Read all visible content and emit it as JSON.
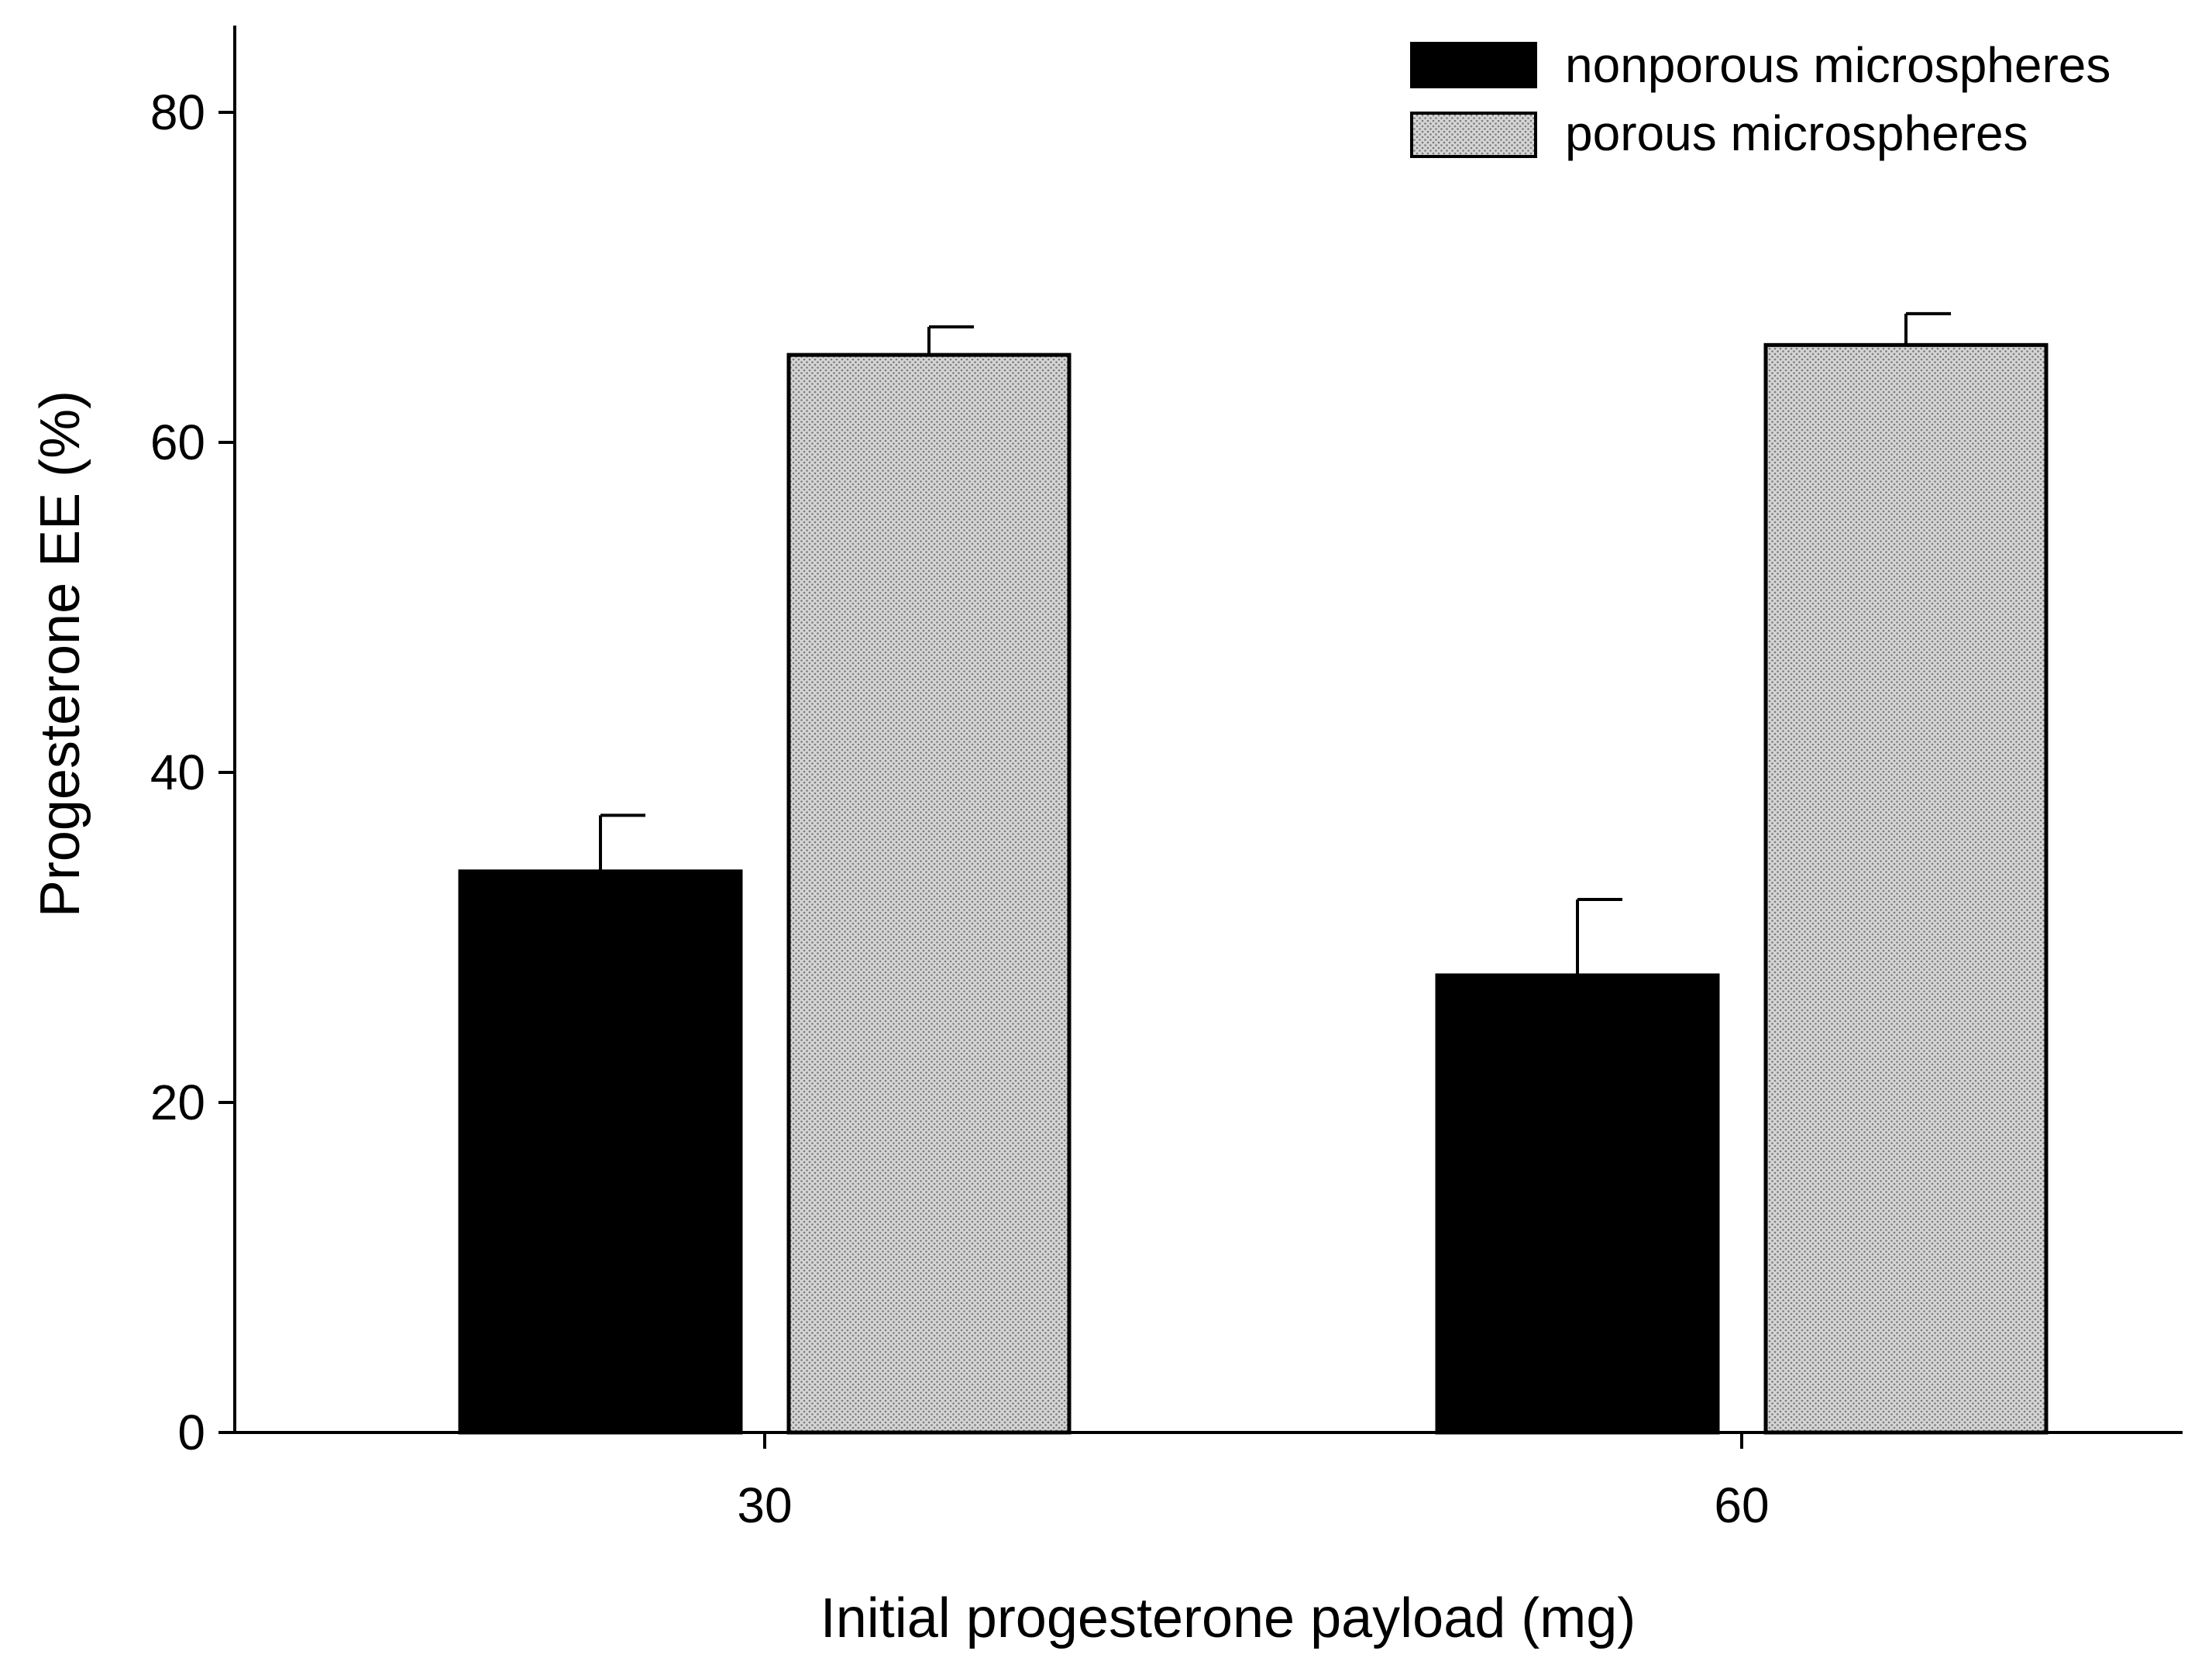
{
  "chart_data": {
    "type": "bar",
    "title": "",
    "xlabel": "Initial progesterone payload (mg)",
    "ylabel": "Progesterone EE (%)",
    "categories": [
      "30",
      "60"
    ],
    "ylim": [
      0,
      85
    ],
    "yticks": [
      0,
      20,
      40,
      60,
      80
    ],
    "ytick_labels": [
      "0",
      "20",
      "40",
      "60",
      "80"
    ],
    "grid": false,
    "legend_position": "top-right",
    "series": [
      {
        "name": "nonporous microspheres",
        "values": [
          34,
          27.7
        ],
        "errors": [
          3.4,
          4.6
        ],
        "fill": "#000000",
        "pattern": "solid"
      },
      {
        "name": "porous microspheres",
        "values": [
          65.3,
          65.9
        ],
        "errors": [
          1.7,
          1.9
        ],
        "fill": "#c8c8c8",
        "pattern": "dotted"
      }
    ]
  }
}
